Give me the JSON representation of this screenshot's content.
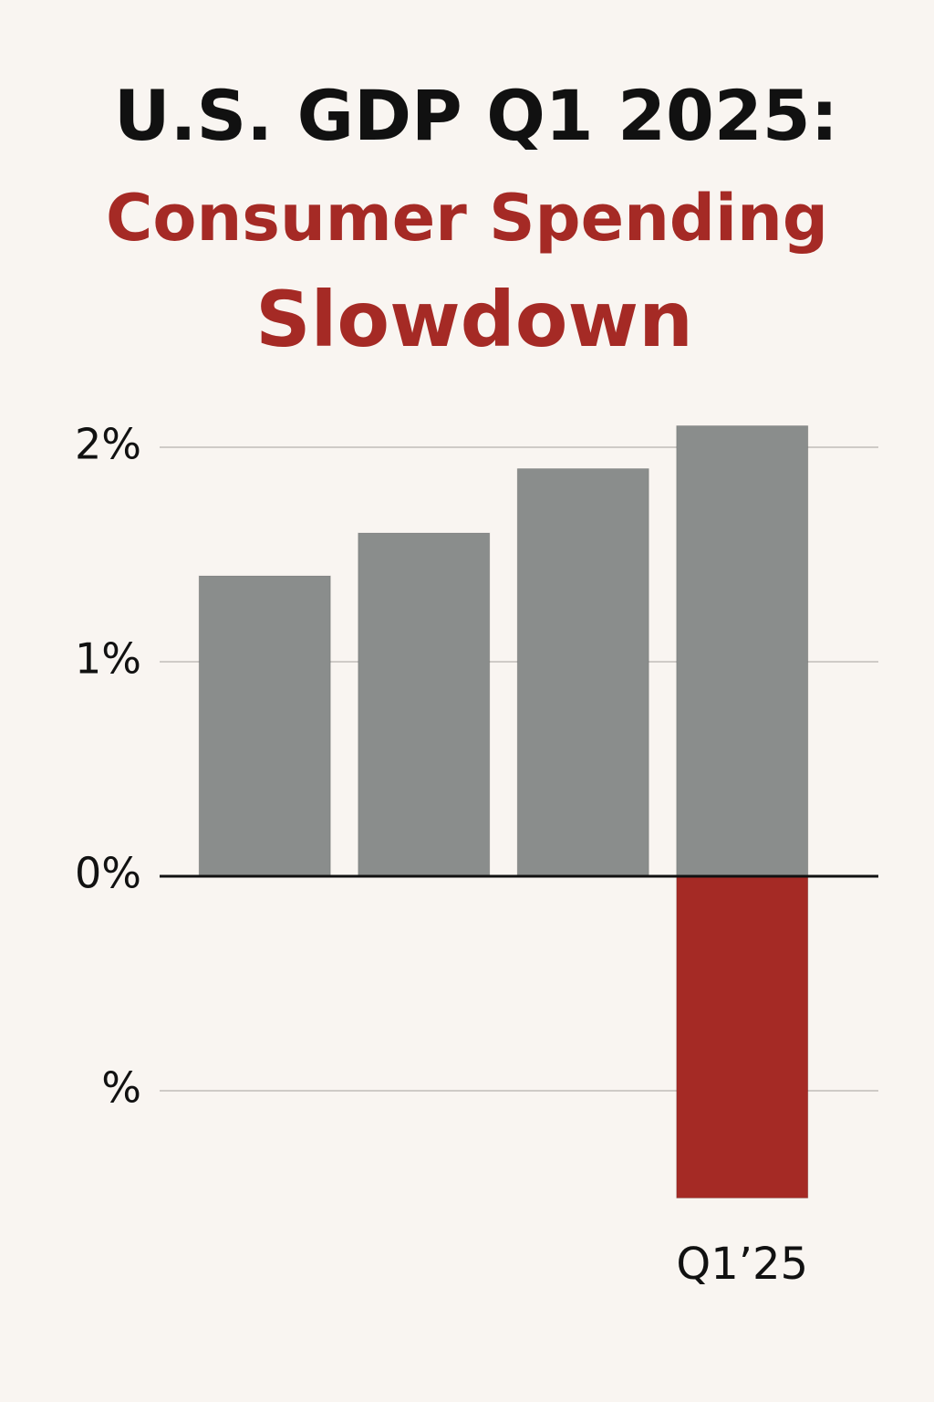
{
  "chart_data": {
    "type": "bar",
    "title": "U.S. GDP Q1 2025:",
    "subtitle": [
      "Consumer Spending",
      "Slowdown"
    ],
    "categories": [
      null,
      null,
      null,
      "Q1’25"
    ],
    "series": [
      {
        "color": "#8a8d8c",
        "values": [
          1.4,
          1.6,
          1.9,
          2.1
        ]
      },
      {
        "color": "#a52a25",
        "values": [
          null,
          null,
          null,
          -1.5
        ]
      }
    ],
    "ylim": [
      -1.6,
      2.2
    ],
    "yticks": [
      {
        "value": -1,
        "label": "%"
      },
      {
        "value": 0,
        "label": "0%"
      },
      {
        "value": 1,
        "label": "1%"
      },
      {
        "value": 2,
        "label": "2%"
      }
    ],
    "grid": true
  }
}
